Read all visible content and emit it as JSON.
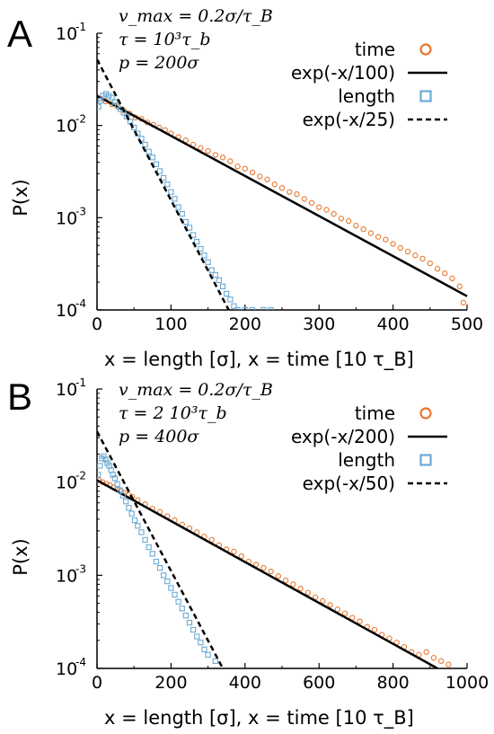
{
  "figure": {
    "panels": [
      "A",
      "B"
    ]
  },
  "colors": {
    "time": "#e8762c",
    "length": "#6aaad4",
    "fit": "#000000"
  },
  "chart_data": [
    {
      "type": "scatter",
      "panel_label": "A",
      "params": [
        "v_max = 0.2σ/τ_B",
        "τ = 10³τ_b",
        "p = 200σ"
      ],
      "xlabel": "x = length [σ], x = time [10 τ_B]",
      "ylabel": "P(x)",
      "xlim": [
        0,
        500
      ],
      "ylim": [
        0.0001,
        0.1
      ],
      "yscale": "log",
      "xticks": [
        0,
        100,
        200,
        300,
        400,
        500
      ],
      "xtick_labels": [
        "0",
        "100",
        "200",
        "300",
        "400",
        "500"
      ],
      "ytick_labels": [
        {
          "base": "10",
          "exp": "-1"
        },
        {
          "base": "10",
          "exp": "-2"
        },
        {
          "base": "10",
          "exp": "-3"
        },
        {
          "base": "10",
          "exp": "-4"
        }
      ],
      "legend_position": "top-right",
      "series": [
        {
          "name": "time",
          "kind": "scatter",
          "marker": "circle",
          "color": "#e8762c",
          "x": [
            5,
            12,
            20,
            28,
            36,
            44,
            52,
            60,
            68,
            76,
            84,
            92,
            100,
            110,
            120,
            130,
            140,
            150,
            160,
            170,
            180,
            190,
            200,
            210,
            220,
            230,
            240,
            250,
            260,
            270,
            280,
            290,
            300,
            310,
            320,
            330,
            340,
            350,
            360,
            370,
            380,
            390,
            400,
            410,
            420,
            430,
            440,
            450,
            460,
            470,
            480,
            490,
            495
          ],
          "y": [
            0.0195,
            0.0182,
            0.017,
            0.016,
            0.0146,
            0.0135,
            0.0122,
            0.0118,
            0.0108,
            0.0102,
            0.0095,
            0.0089,
            0.0082,
            0.0075,
            0.0069,
            0.0062,
            0.0057,
            0.0053,
            0.0048,
            0.0045,
            0.0041,
            0.0036,
            0.0034,
            0.0031,
            0.0028,
            0.0026,
            0.0023,
            0.0021,
            0.0019,
            0.0018,
            0.0016,
            0.00145,
            0.0013,
            0.00122,
            0.0011,
            0.00098,
            0.00092,
            0.00082,
            0.00075,
            0.00068,
            0.00062,
            0.00058,
            0.00052,
            0.00047,
            0.00043,
            0.00039,
            0.00036,
            0.00032,
            0.00028,
            0.00025,
            0.00022,
            0.00018,
            0.00012
          ]
        },
        {
          "name": "exp(-x/100)",
          "kind": "line",
          "dash": false,
          "color": "#000000",
          "x": [
            0,
            500
          ],
          "y": [
            0.021,
            0.000141
          ]
        },
        {
          "name": "length",
          "kind": "scatter",
          "marker": "square",
          "color": "#6aaad4",
          "x": [
            2,
            5,
            8,
            12,
            16,
            20,
            24,
            28,
            32,
            36,
            40,
            45,
            50,
            55,
            60,
            65,
            70,
            75,
            80,
            85,
            90,
            95,
            100,
            105,
            110,
            115,
            120,
            125,
            130,
            135,
            140,
            145,
            150,
            155,
            160,
            165,
            170,
            175,
            180,
            185,
            190,
            200,
            210,
            225,
            235
          ],
          "y": [
            0.016,
            0.0185,
            0.021,
            0.022,
            0.021,
            0.02,
            0.018,
            0.0165,
            0.015,
            0.0138,
            0.0125,
            0.011,
            0.0095,
            0.0082,
            0.0072,
            0.0062,
            0.0052,
            0.0045,
            0.0038,
            0.0032,
            0.0027,
            0.0023,
            0.0019,
            0.0016,
            0.0013,
            0.0011,
            0.0009,
            0.00078,
            0.00065,
            0.00055,
            0.00046,
            0.00039,
            0.00033,
            0.00027,
            0.00024,
            0.00021,
            0.00018,
            0.00015,
            0.00013,
            0.00011,
            0.0001,
            0.0001,
            0.0001,
            0.0001,
            0.0001
          ]
        },
        {
          "name": "exp(-x/25)",
          "kind": "line",
          "dash": true,
          "color": "#000000",
          "x": [
            0,
            178
          ],
          "y": [
            0.052,
            0.0001
          ]
        }
      ]
    },
    {
      "type": "scatter",
      "panel_label": "B",
      "params": [
        "v_max = 0.2σ/τ_B",
        "τ = 2 10³τ_b",
        "p = 400σ"
      ],
      "xlabel": "x = length [σ], x = time [10 τ_B]",
      "ylabel": "P(x)",
      "xlim": [
        0,
        1000
      ],
      "ylim": [
        0.0001,
        0.1
      ],
      "yscale": "log",
      "xticks": [
        0,
        200,
        400,
        600,
        800,
        1000
      ],
      "xtick_labels": [
        "0",
        "200",
        "400",
        "600",
        "800",
        "1000"
      ],
      "ytick_labels": [
        {
          "base": "10",
          "exp": "-1"
        },
        {
          "base": "10",
          "exp": "-2"
        },
        {
          "base": "10",
          "exp": "-3"
        },
        {
          "base": "10",
          "exp": "-4"
        }
      ],
      "legend_position": "top-right",
      "series": [
        {
          "name": "time",
          "kind": "scatter",
          "marker": "circle",
          "color": "#e8762c",
          "x": [
            5,
            15,
            25,
            35,
            45,
            55,
            65,
            75,
            85,
            95,
            110,
            130,
            150,
            170,
            190,
            210,
            230,
            250,
            270,
            290,
            310,
            330,
            350,
            370,
            390,
            410,
            430,
            450,
            470,
            490,
            510,
            530,
            550,
            570,
            590,
            610,
            630,
            650,
            670,
            690,
            710,
            730,
            750,
            770,
            790,
            810,
            830,
            850,
            870,
            890,
            910,
            930,
            950
          ],
          "y": [
            0.0105,
            0.01,
            0.0096,
            0.0093,
            0.0088,
            0.0084,
            0.008,
            0.0077,
            0.0073,
            0.007,
            0.0064,
            0.0058,
            0.0052,
            0.0048,
            0.0043,
            0.0039,
            0.0035,
            0.0032,
            0.0029,
            0.0026,
            0.0024,
            0.0021,
            0.0019,
            0.0018,
            0.0016,
            0.0014,
            0.0013,
            0.0012,
            0.0011,
            0.00098,
            0.00088,
            0.0008,
            0.00072,
            0.00065,
            0.00058,
            0.00053,
            0.00048,
            0.00043,
            0.00039,
            0.00035,
            0.00032,
            0.00028,
            0.00026,
            0.00023,
            0.00021,
            0.00019,
            0.00017,
            0.00015,
            0.00014,
            0.00015,
            0.00013,
            0.00012,
            0.00011
          ]
        },
        {
          "name": "exp(-x/200)",
          "kind": "line",
          "dash": false,
          "color": "#000000",
          "x": [
            0,
            920
          ],
          "y": [
            0.0105,
            0.0001
          ]
        },
        {
          "name": "length",
          "kind": "scatter",
          "marker": "square",
          "color": "#6aaad4",
          "x": [
            3,
            8,
            13,
            18,
            23,
            28,
            33,
            38,
            43,
            48,
            55,
            62,
            70,
            78,
            86,
            94,
            102,
            110,
            120,
            130,
            140,
            150,
            160,
            170,
            180,
            190,
            200,
            210,
            220,
            230,
            240,
            250,
            260,
            270,
            280,
            290,
            300,
            320
          ],
          "y": [
            0.012,
            0.015,
            0.018,
            0.019,
            0.0175,
            0.016,
            0.015,
            0.0135,
            0.012,
            0.011,
            0.0095,
            0.0082,
            0.0072,
            0.0062,
            0.0053,
            0.0046,
            0.0039,
            0.0034,
            0.0029,
            0.0024,
            0.002,
            0.0017,
            0.0014,
            0.0012,
            0.001,
            0.00086,
            0.00073,
            0.00062,
            0.00052,
            0.00044,
            0.00037,
            0.00031,
            0.00026,
            0.00022,
            0.00019,
            0.00016,
            0.00014,
            0.00012
          ]
        },
        {
          "name": "exp(-x/50)",
          "kind": "line",
          "dash": true,
          "color": "#000000",
          "x": [
            0,
            340
          ],
          "y": [
            0.035,
            0.0001
          ]
        }
      ]
    }
  ]
}
